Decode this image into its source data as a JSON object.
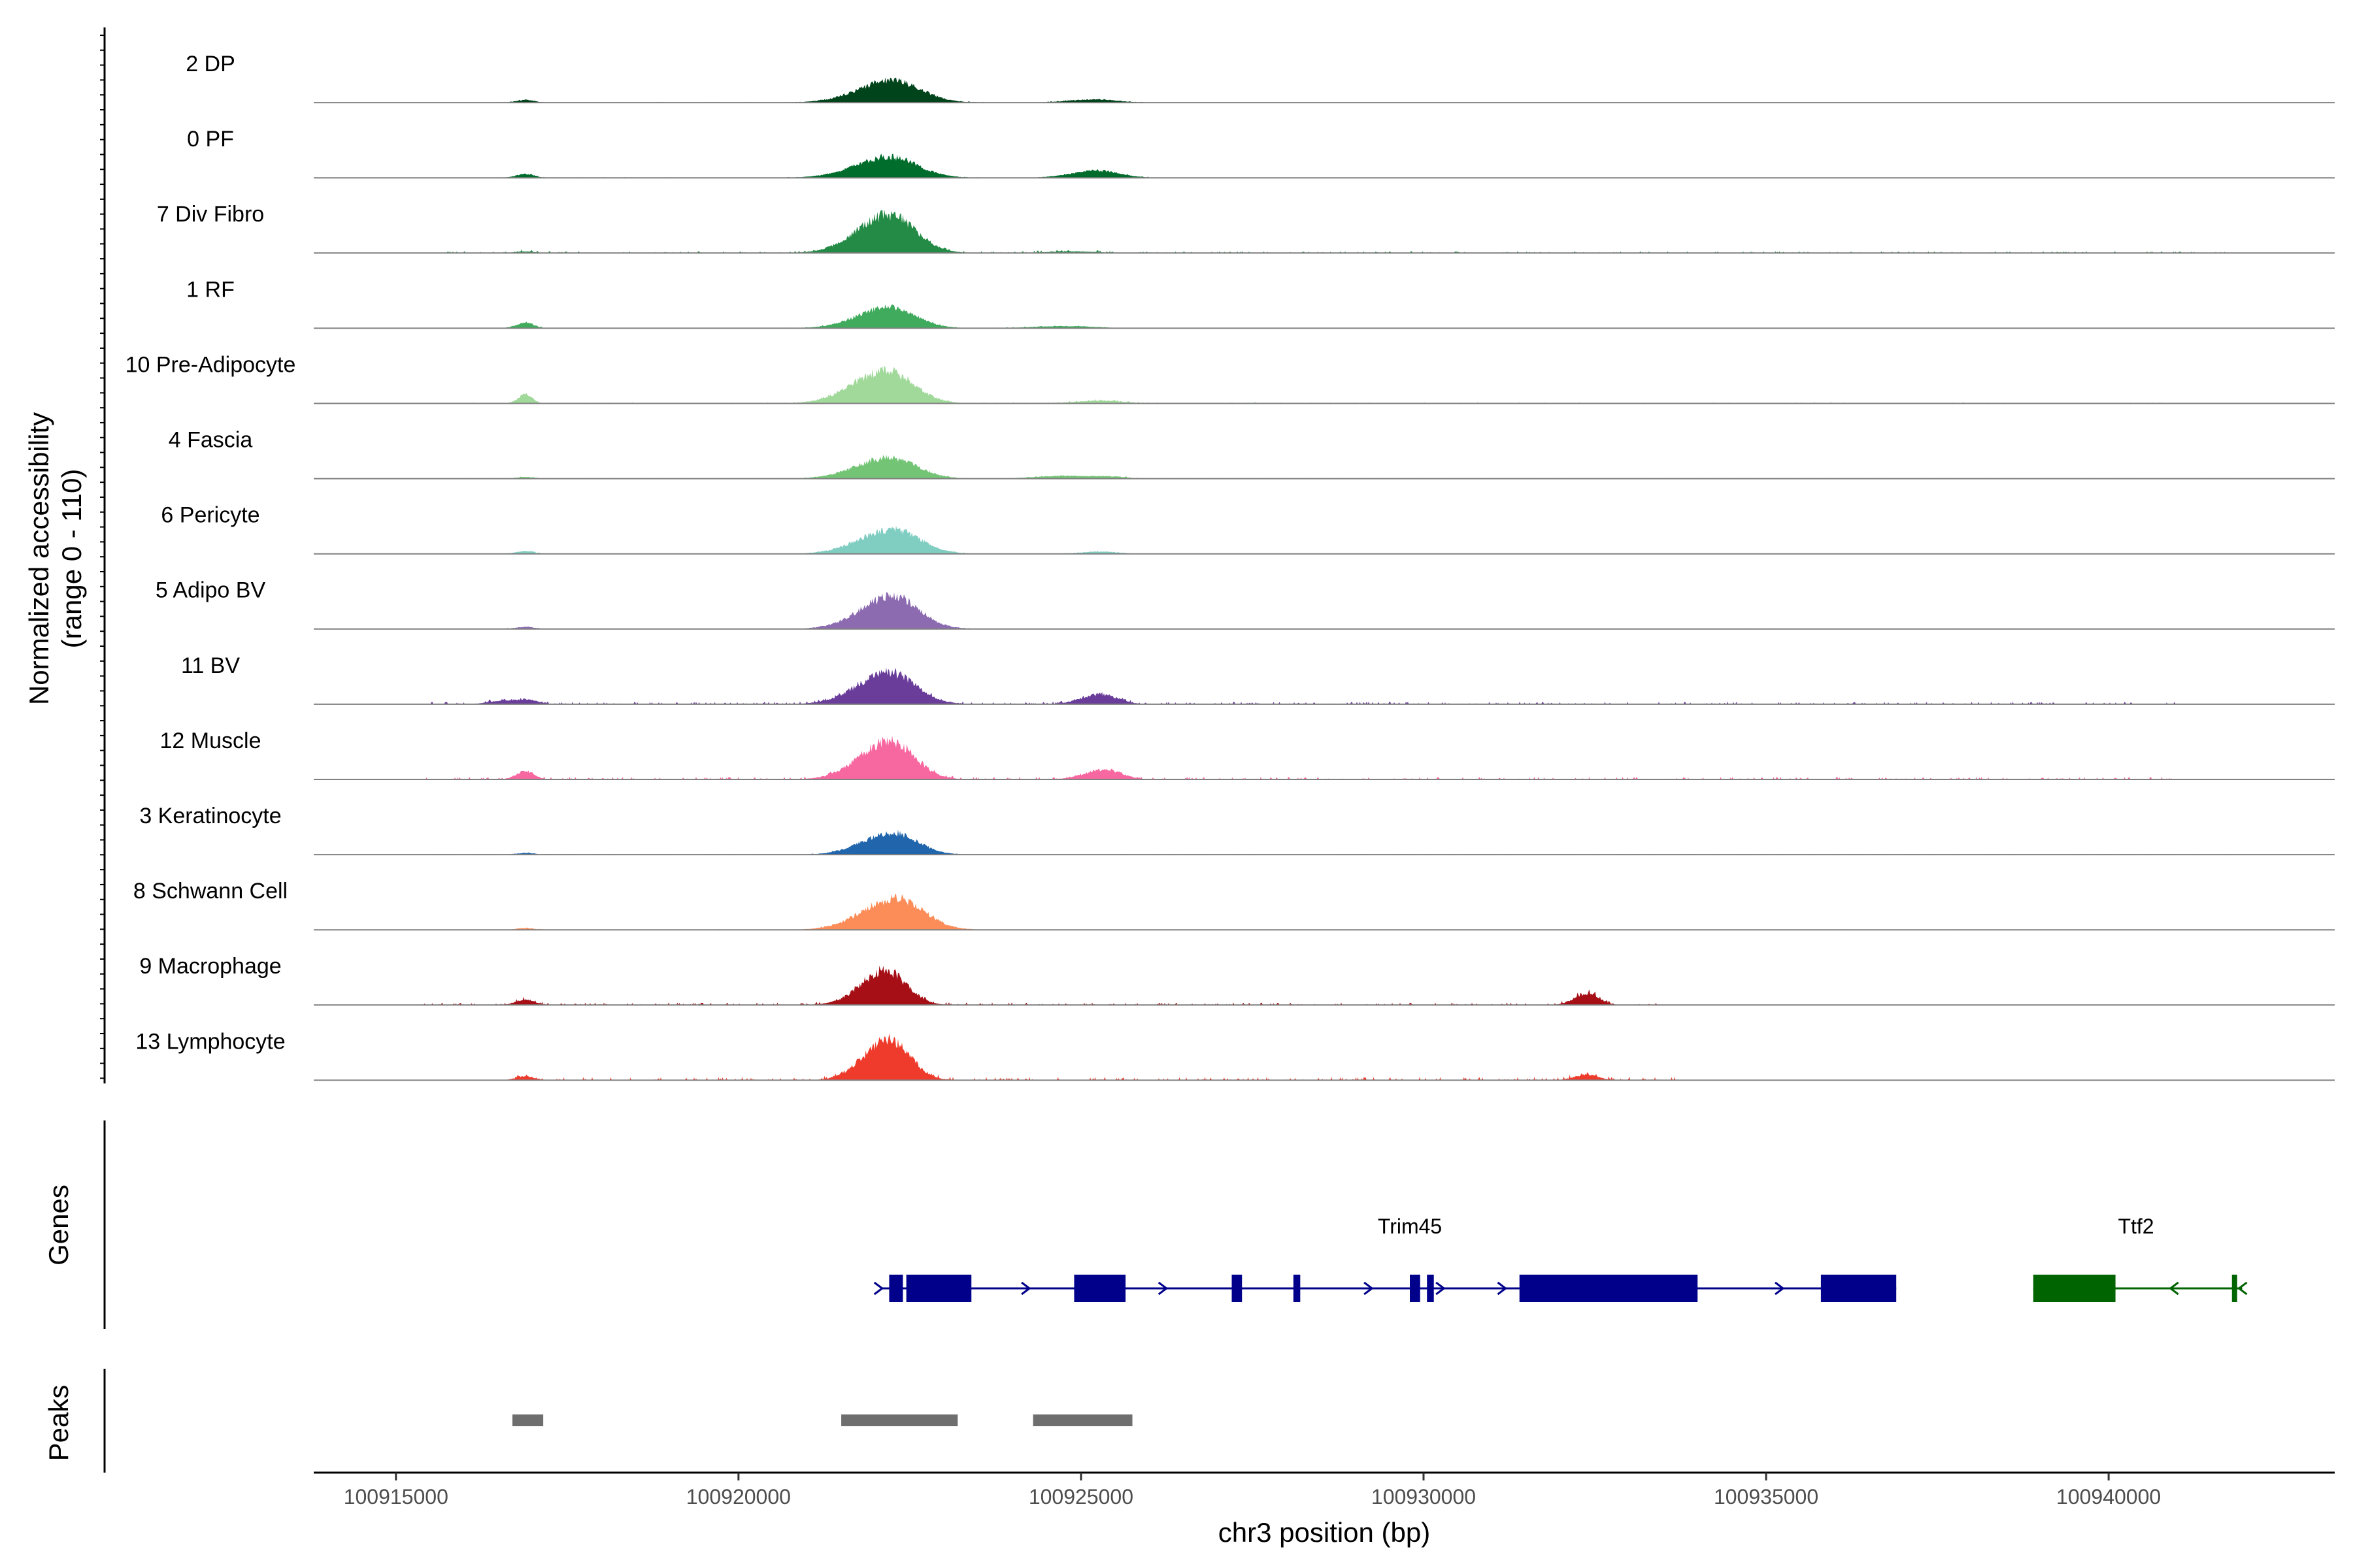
{
  "chart_data": {
    "type": "area",
    "title": "",
    "chromosome": "chr3",
    "xlabel": "chr3 position (bp)",
    "ylabel_line1": "Normalized accessibility",
    "ylabel_line2": "(range 0 - 110)",
    "ylim": [
      0,
      110
    ],
    "xlim": [
      100913800,
      100943300
    ],
    "x_ticks": [
      100915000,
      100920000,
      100925000,
      100930000,
      100935000,
      100940000
    ],
    "x_tick_labels": [
      "100915000",
      "100920000",
      "100925000",
      "100930000",
      "100935000",
      "100940000"
    ],
    "panel_labels": {
      "genes": "Genes",
      "peaks": "Peaks"
    },
    "tracks": [
      {
        "name": "2 DP",
        "color": "#00441b",
        "peaks": [
          [
            100916900,
            5,
            150
          ],
          [
            100922250,
            40,
            520
          ],
          [
            100925200,
            6,
            400
          ]
        ],
        "noise": [
          100915500,
          100926300
        ],
        "noise_level": 1
      },
      {
        "name": "0 PF",
        "color": "#006d2c",
        "peaks": [
          [
            100916900,
            7,
            150
          ],
          [
            100922200,
            38,
            520
          ],
          [
            100925250,
            13,
            400
          ]
        ],
        "noise": [
          100915500,
          100926300
        ],
        "noise_level": 1
      },
      {
        "name": "7 Div Fibro",
        "color": "#238b45",
        "peaks": [
          [
            100916900,
            3,
            150
          ],
          [
            100922200,
            70,
            480
          ],
          [
            100924900,
            3,
            400
          ]
        ],
        "noise": [
          100915700,
          100941800
        ],
        "noise_level": 3
      },
      {
        "name": "1 RF",
        "color": "#41ab5d",
        "peaks": [
          [
            100916900,
            10,
            150
          ],
          [
            100922200,
            38,
            480
          ],
          [
            100924800,
            4,
            500
          ]
        ],
        "noise": [
          100915600,
          100926000
        ],
        "noise_level": 1
      },
      {
        "name": "10 Pre-Adipocyte",
        "color": "#a1d99b",
        "peaks": [
          [
            100916900,
            17,
            120
          ],
          [
            100922150,
            60,
            500
          ],
          [
            100925300,
            5,
            400
          ]
        ],
        "noise": [
          100915600,
          100941000
        ],
        "noise_level": 2
      },
      {
        "name": "4 Fascia",
        "color": "#74c476",
        "peaks": [
          [
            100916900,
            3,
            150
          ],
          [
            100922200,
            38,
            500
          ],
          [
            100924700,
            5,
            400
          ],
          [
            100925400,
            4,
            300
          ]
        ],
        "noise": [
          100915600,
          100941800
        ],
        "noise_level": 1
      },
      {
        "name": "6 Pericyte",
        "color": "#80cdc1",
        "peaks": [
          [
            100916900,
            5,
            150
          ],
          [
            100922250,
            45,
            500
          ],
          [
            100925300,
            4,
            300
          ]
        ],
        "noise": [
          100915600,
          100941800
        ],
        "noise_level": 1
      },
      {
        "name": "5 Adipo BV",
        "color": "#8c6bb1",
        "peaks": [
          [
            100916900,
            4,
            150
          ],
          [
            100922250,
            60,
            480
          ]
        ],
        "noise": [
          100915600,
          100941800
        ],
        "noise_level": 1
      },
      {
        "name": "11 BV",
        "color": "#6a3d9a",
        "peaks": [
          [
            100916900,
            9,
            200
          ],
          [
            100916500,
            5,
            200
          ],
          [
            100922200,
            58,
            480
          ],
          [
            100925300,
            18,
            300
          ]
        ],
        "noise": [
          100915500,
          100941000
        ],
        "noise_level": 4
      },
      {
        "name": "12 Muscle",
        "color": "#f768a1",
        "peaks": [
          [
            100916900,
            15,
            150
          ],
          [
            100922200,
            70,
            450
          ],
          [
            100925350,
            18,
            300
          ]
        ],
        "noise": [
          100915400,
          100941000
        ],
        "noise_level": 4
      },
      {
        "name": "3 Keratinocyte",
        "color": "#2166ac",
        "peaks": [
          [
            100916900,
            3,
            150
          ],
          [
            100922250,
            40,
            450
          ]
        ],
        "noise": [
          100915500,
          100941800
        ],
        "noise_level": 1
      },
      {
        "name": "8 Schwann Cell",
        "color": "#fc8d59",
        "peaks": [
          [
            100916900,
            3,
            150
          ],
          [
            100922300,
            58,
            500
          ]
        ],
        "noise": [
          100915600,
          100941000
        ],
        "noise_level": 1
      },
      {
        "name": "9 Macrophage",
        "color": "#a50f15",
        "peaks": [
          [
            100916900,
            10,
            150
          ],
          [
            100922150,
            62,
            380
          ],
          [
            100932400,
            22,
            200
          ]
        ],
        "noise": [
          100915300,
          100933400
        ],
        "noise_level": 4
      },
      {
        "name": "13 Lymphocyte",
        "color": "#ef3b2c",
        "peaks": [
          [
            100916900,
            7,
            150
          ],
          [
            100922200,
            75,
            380
          ],
          [
            100932400,
            10,
            200
          ]
        ],
        "noise": [
          100916600,
          100933700
        ],
        "noise_level": 5
      }
    ],
    "genes": [
      {
        "name": "Trim45",
        "color": "#00008b",
        "strand": "+",
        "start": 100922100,
        "end": 100936900,
        "label_x": 100929800,
        "exons": [
          [
            100922200,
            100922400
          ],
          [
            100922450,
            100923400
          ],
          [
            100924900,
            100925650
          ],
          [
            100927200,
            100927350
          ],
          [
            100928100,
            100928200
          ],
          [
            100929800,
            100929950
          ],
          [
            100930050,
            100930150
          ],
          [
            100931400,
            100934000
          ],
          [
            100935800,
            100936900
          ]
        ],
        "arrows": [
          100922050,
          100924200,
          100926200,
          100929200,
          100930250,
          100931150,
          100935200
        ]
      },
      {
        "name": "Ttf2",
        "color": "#006400",
        "strand": "-",
        "start": 100938900,
        "end": 100941950,
        "label_x": 100940400,
        "exons": [
          [
            100938900,
            100940100
          ],
          [
            100941800,
            100941850
          ]
        ],
        "arrows": [
          100940950,
          100941950
        ]
      }
    ],
    "peaks": [
      [
        100916700,
        100917150
      ],
      [
        100921500,
        100923200
      ],
      [
        100924300,
        100925750
      ]
    ]
  }
}
